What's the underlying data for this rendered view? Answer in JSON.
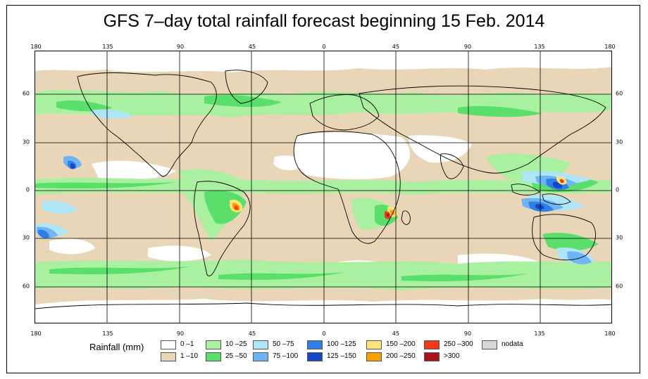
{
  "title": "GFS 7–day total rainfall forecast beginning 15 Feb. 2014",
  "longitude_ticks": [
    "180",
    "135",
    "90",
    "45",
    "0",
    "45",
    "90",
    "135",
    "180"
  ],
  "latitude_ticks": [
    "60",
    "30",
    "0",
    "30",
    "60"
  ],
  "legend": {
    "title": "Rainfall (mm)",
    "items": [
      {
        "label": "0 –1",
        "color": "#ffffff"
      },
      {
        "label": "1 –10",
        "color": "#e9d6b6"
      },
      {
        "label": "10 –25",
        "color": "#a9f0a1"
      },
      {
        "label": "25 –50",
        "color": "#5ae06a"
      },
      {
        "label": "50 –75",
        "color": "#aee6f5"
      },
      {
        "label": "75 –100",
        "color": "#6fb4f5"
      },
      {
        "label": "100 –125",
        "color": "#2f7fe8"
      },
      {
        "label": "125 –150",
        "color": "#1447c4"
      },
      {
        "label": "150 –200",
        "color": "#fde47a"
      },
      {
        "label": "200 –250",
        "color": "#f7a000"
      },
      {
        "label": "250 –300",
        "color": "#f03a14"
      },
      {
        "label": ">300",
        "color": "#a8151a"
      },
      {
        "label": "nodata",
        "color": "#d7d7d7"
      }
    ]
  },
  "colors": {
    "background_class": "#e9d6b6",
    "grid": "#000000",
    "coastline": "#000000"
  }
}
